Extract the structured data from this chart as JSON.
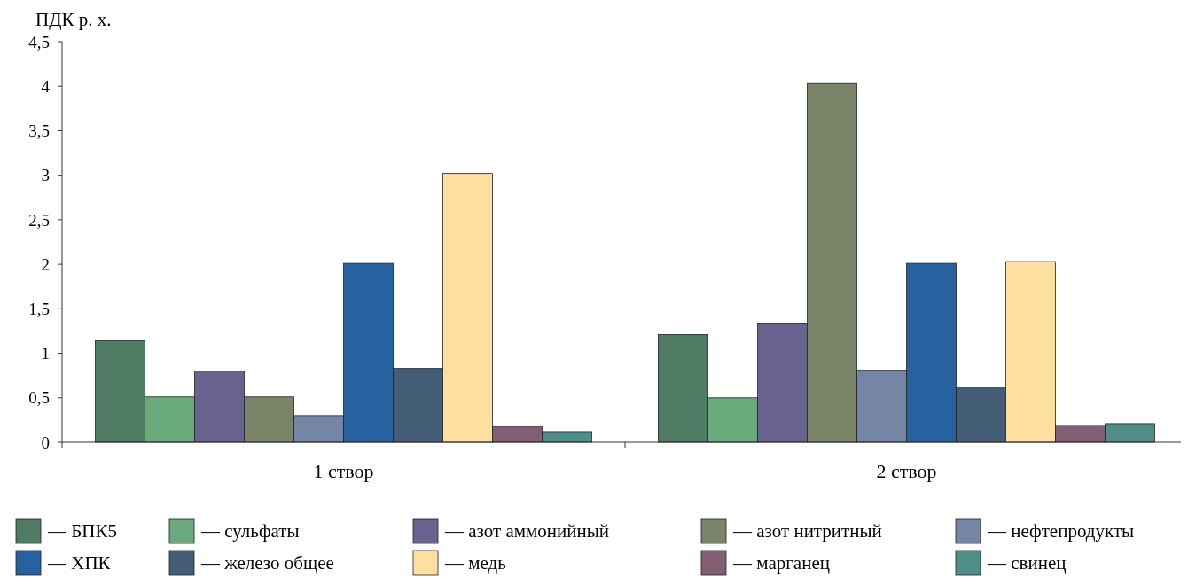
{
  "chart_data": {
    "type": "bar",
    "ylabel": "ПДК р. х.",
    "categories": [
      "1 створ",
      "2 створ"
    ],
    "series": [
      {
        "name": "— БПК5",
        "color": "#4f7a63",
        "values": [
          1.14,
          1.21
        ]
      },
      {
        "name": "— сульфаты",
        "color": "#6aaa7c",
        "values": [
          0.51,
          0.5
        ]
      },
      {
        "name": "— азот аммонийный",
        "color": "#6a6390",
        "values": [
          0.8,
          1.34
        ]
      },
      {
        "name": "— азот нитритный",
        "color": "#7a8468",
        "values": [
          0.51,
          4.03
        ]
      },
      {
        "name": "— нефтепродукты",
        "color": "#7585a6",
        "values": [
          0.3,
          0.81
        ]
      },
      {
        "name": "— ХПК",
        "color": "#2762a0",
        "values": [
          2.01,
          2.01
        ]
      },
      {
        "name": "— железо общее",
        "color": "#445e78",
        "values": [
          0.83,
          0.62
        ]
      },
      {
        "name": "— медь",
        "color": "#fde0a0",
        "values": [
          3.02,
          2.03
        ]
      },
      {
        "name": "— марганец",
        "color": "#835f73",
        "values": [
          0.18,
          0.19
        ]
      },
      {
        "name": "— свинец",
        "color": "#4f8f87",
        "values": [
          0.12,
          0.21
        ]
      }
    ],
    "ylim": [
      0,
      4.5
    ],
    "yticks": [
      0,
      {
        "value": 0.5,
        "label": "0,5"
      },
      1,
      {
        "value": 1.5,
        "label": "1,5"
      },
      2,
      {
        "value": 2.5,
        "label": "2,5"
      },
      3,
      {
        "value": 3.5,
        "label": "3,5"
      },
      4,
      {
        "value": 4.5,
        "label": "4,5"
      }
    ],
    "grid": false,
    "legend": "bottom"
  }
}
